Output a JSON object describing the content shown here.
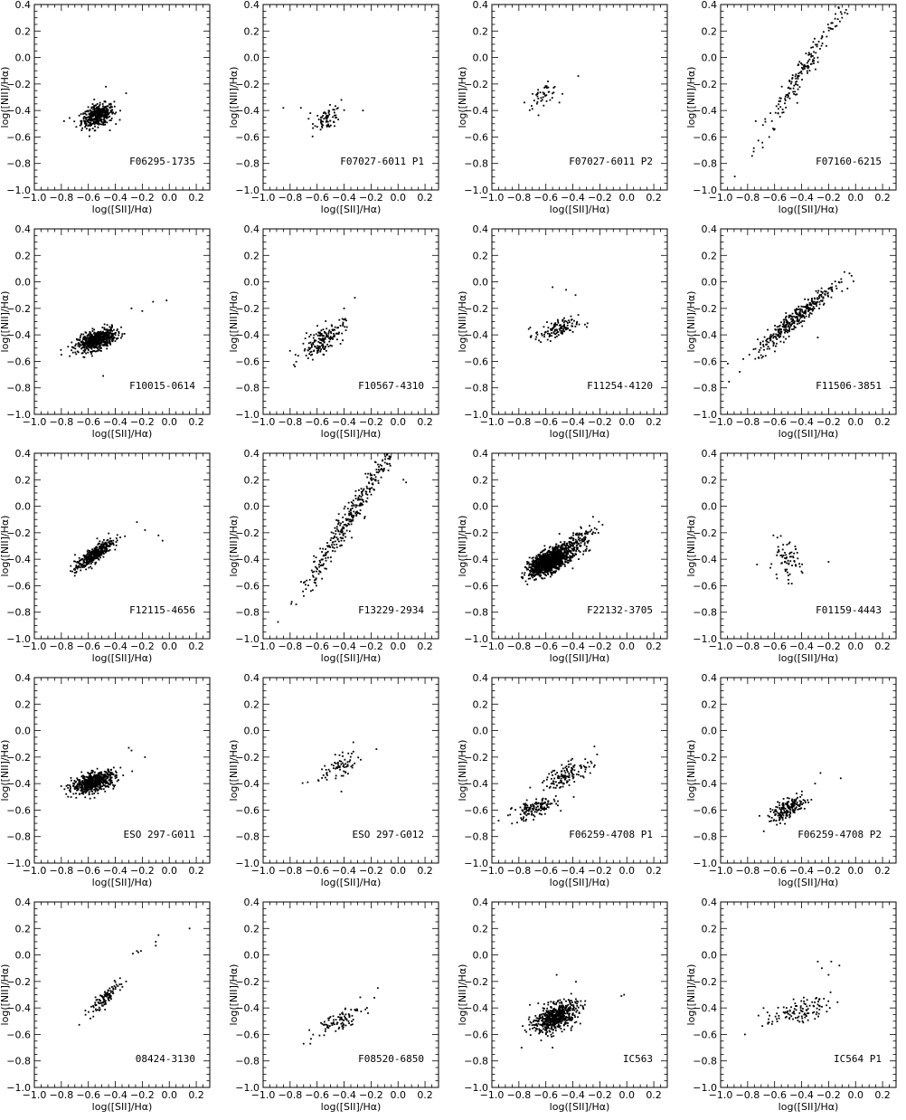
{
  "figure": {
    "xlabel": "log([SII]/Hα)",
    "ylabel": "log([NII]/Hα)",
    "xlim": [
      -1.0,
      0.3
    ],
    "ylim": [
      -1.0,
      0.4
    ],
    "x_ticks": [
      "−1.0",
      "−0.8",
      "−0.6",
      "−0.4",
      "−0.2",
      "0.0",
      "0.2"
    ],
    "y_ticks": [
      "−1.0",
      "−0.8",
      "−0.6",
      "−0.4",
      "−0.2",
      "0.0",
      "0.2",
      "0.4"
    ],
    "grid": "off",
    "layout": "5 rows × 4 columns"
  },
  "chart_data": [
    {
      "type": "scatter",
      "name": "F06295-1735",
      "cloud": [
        {
          "cx": -0.53,
          "cy": -0.44,
          "sx": 0.06,
          "sy": 0.04,
          "slope": 0.3,
          "n": 420
        }
      ],
      "points": [
        [
          -0.78,
          -0.48
        ],
        [
          -0.47,
          -0.22
        ],
        [
          -0.32,
          -0.27
        ],
        [
          -0.44,
          -0.55
        ]
      ]
    },
    {
      "type": "scatter",
      "name": "F07027-6011 P1",
      "cloud": [
        {
          "cx": -0.52,
          "cy": -0.46,
          "sx": 0.05,
          "sy": 0.04,
          "slope": 0.3,
          "n": 70
        }
      ],
      "points": [
        [
          -0.85,
          -0.38
        ],
        [
          -0.72,
          -0.38
        ],
        [
          -0.65,
          -0.42
        ],
        [
          -0.42,
          -0.32
        ],
        [
          -0.26,
          -0.4
        ]
      ]
    },
    {
      "type": "scatter",
      "name": "F07027-6011 P2",
      "cloud": [
        {
          "cx": -0.62,
          "cy": -0.28,
          "sx": 0.06,
          "sy": 0.035,
          "slope": 0.45,
          "n": 45
        }
      ],
      "points": [
        [
          -0.36,
          -0.14
        ],
        [
          -0.5,
          -0.34
        ]
      ]
    },
    {
      "type": "scatter",
      "name": "F07160-6215",
      "cloud": [
        {
          "cx": -0.4,
          "cy": -0.12,
          "sx": 0.17,
          "sy": 0.06,
          "slope": 1.6,
          "n": 170
        }
      ],
      "points": [
        [
          -0.06,
          0.33
        ],
        [
          -0.1,
          0.3
        ],
        [
          -0.07,
          0.36
        ],
        [
          -0.74,
          -0.48
        ],
        [
          -0.62,
          -0.48
        ]
      ]
    },
    {
      "type": "scatter",
      "name": "F10015-0614",
      "cloud": [
        {
          "cx": -0.54,
          "cy": -0.44,
          "sx": 0.07,
          "sy": 0.035,
          "slope": 0.3,
          "n": 620
        }
      ],
      "points": [
        [
          -0.02,
          -0.14
        ],
        [
          -0.12,
          -0.15
        ],
        [
          -0.2,
          -0.22
        ],
        [
          -0.28,
          -0.2
        ],
        [
          -0.49,
          -0.71
        ],
        [
          -0.8,
          -0.55
        ]
      ]
    },
    {
      "type": "scatter",
      "name": "F10567-4310",
      "cloud": [
        {
          "cx": -0.56,
          "cy": -0.44,
          "sx": 0.08,
          "sy": 0.05,
          "slope": 0.6,
          "n": 170
        }
      ],
      "points": [
        [
          -0.32,
          -0.12
        ],
        [
          -0.4,
          -0.2
        ],
        [
          -0.76,
          -0.55
        ]
      ]
    },
    {
      "type": "scatter",
      "name": "F11254-4120",
      "cloud": [
        {
          "cx": -0.52,
          "cy": -0.36,
          "sx": 0.08,
          "sy": 0.035,
          "slope": 0.25,
          "n": 130
        }
      ],
      "points": [
        [
          -0.55,
          -0.04
        ],
        [
          -0.45,
          -0.06
        ],
        [
          -0.38,
          -0.1
        ]
      ]
    },
    {
      "type": "scatter",
      "name": "F11506-3851",
      "cloud": [
        {
          "cx": -0.44,
          "cy": -0.27,
          "sx": 0.15,
          "sy": 0.04,
          "slope": 0.85,
          "n": 360
        }
      ],
      "points": [
        [
          -0.06,
          -0.05
        ],
        [
          -0.1,
          -0.07
        ],
        [
          -0.14,
          -0.05
        ],
        [
          -0.28,
          -0.42
        ]
      ]
    },
    {
      "type": "scatter",
      "name": "F12115-4656",
      "cloud": [
        {
          "cx": -0.56,
          "cy": -0.37,
          "sx": 0.07,
          "sy": 0.03,
          "slope": 0.75,
          "n": 380
        }
      ],
      "points": [
        [
          -0.24,
          -0.12
        ],
        [
          -0.18,
          -0.18
        ],
        [
          -0.08,
          -0.22
        ],
        [
          -0.05,
          -0.26
        ]
      ]
    },
    {
      "type": "scatter",
      "name": "F13229-2934",
      "cloud": [
        {
          "cx": -0.36,
          "cy": -0.08,
          "sx": 0.18,
          "sy": 0.06,
          "slope": 1.6,
          "n": 330
        }
      ],
      "points": [
        [
          0.04,
          0.2
        ],
        [
          0.06,
          0.18
        ],
        [
          -0.08,
          0.32
        ]
      ]
    },
    {
      "type": "scatter",
      "name": "F22132-3705",
      "cloud": [
        {
          "cx": -0.58,
          "cy": -0.42,
          "sx": 0.07,
          "sy": 0.04,
          "slope": 0.4,
          "n": 1200
        },
        {
          "cx": -0.4,
          "cy": -0.3,
          "sx": 0.08,
          "sy": 0.05,
          "slope": 0.6,
          "n": 200
        }
      ],
      "points": [
        [
          -0.25,
          -0.08
        ],
        [
          -0.18,
          -0.14
        ],
        [
          -0.7,
          -0.52
        ]
      ]
    },
    {
      "type": "scatter",
      "name": "F01159-4443",
      "cloud": [
        {
          "cx": -0.52,
          "cy": -0.42,
          "sx": 0.06,
          "sy": 0.07,
          "slope": 0.0,
          "n": 70
        }
      ],
      "points": [
        [
          -0.2,
          -0.42
        ],
        [
          -0.73,
          -0.44
        ]
      ]
    },
    {
      "type": "scatter",
      "name": "ESO 297-G011",
      "cloud": [
        {
          "cx": -0.56,
          "cy": -0.39,
          "sx": 0.08,
          "sy": 0.035,
          "slope": 0.25,
          "n": 580
        }
      ],
      "points": [
        [
          -0.18,
          -0.2
        ],
        [
          -0.3,
          -0.13
        ],
        [
          -0.28,
          -0.15
        ]
      ]
    },
    {
      "type": "scatter",
      "name": "ESO 297-G012",
      "cloud": [
        {
          "cx": -0.44,
          "cy": -0.28,
          "sx": 0.09,
          "sy": 0.04,
          "slope": 0.55,
          "n": 70
        }
      ],
      "points": [
        [
          -0.16,
          -0.14
        ],
        [
          -0.42,
          -0.46
        ]
      ]
    },
    {
      "type": "scatter",
      "name": "F06259-4708 P1",
      "cloud": [
        {
          "cx": -0.68,
          "cy": -0.59,
          "sx": 0.08,
          "sy": 0.035,
          "slope": 0.3,
          "n": 150
        },
        {
          "cx": -0.44,
          "cy": -0.33,
          "sx": 0.09,
          "sy": 0.04,
          "slope": 0.4,
          "n": 130
        }
      ],
      "points": [
        [
          -0.24,
          -0.12
        ],
        [
          -0.22,
          -0.18
        ],
        [
          -0.95,
          -0.68
        ],
        [
          -0.88,
          -0.64
        ]
      ]
    },
    {
      "type": "scatter",
      "name": "F06259-4708 P2",
      "cloud": [
        {
          "cx": -0.5,
          "cy": -0.59,
          "sx": 0.07,
          "sy": 0.035,
          "slope": 0.45,
          "n": 190
        }
      ],
      "points": [
        [
          -0.26,
          -0.32
        ],
        [
          -0.11,
          -0.36
        ],
        [
          -0.3,
          -0.4
        ],
        [
          -0.68,
          -0.76
        ]
      ]
    },
    {
      "type": "scatter",
      "name": "08424-3130",
      "cloud": [
        {
          "cx": -0.48,
          "cy": -0.33,
          "sx": 0.06,
          "sy": 0.03,
          "slope": 0.9,
          "n": 110
        }
      ],
      "points": [
        [
          0.15,
          0.2
        ],
        [
          -0.08,
          0.15
        ],
        [
          -0.1,
          0.1
        ],
        [
          -0.1,
          0.07
        ],
        [
          -0.21,
          0.03
        ],
        [
          -0.24,
          0.03
        ],
        [
          -0.23,
          0.02
        ],
        [
          -0.27,
          0.01
        ],
        [
          -0.32,
          -0.2
        ]
      ]
    },
    {
      "type": "scatter",
      "name": "F08520-6850",
      "cloud": [
        {
          "cx": -0.44,
          "cy": -0.49,
          "sx": 0.08,
          "sy": 0.04,
          "slope": 0.45,
          "n": 90
        }
      ],
      "points": [
        [
          -0.15,
          -0.25
        ],
        [
          -0.7,
          -0.67
        ],
        [
          -0.65,
          -0.67
        ],
        [
          -0.28,
          -0.32
        ]
      ]
    },
    {
      "type": "scatter",
      "name": "IC563",
      "cloud": [
        {
          "cx": -0.53,
          "cy": -0.47,
          "sx": 0.08,
          "sy": 0.05,
          "slope": 0.35,
          "n": 600
        }
      ],
      "points": [
        [
          -0.02,
          -0.3
        ],
        [
          -0.04,
          -0.31
        ],
        [
          -0.52,
          -0.15
        ],
        [
          -0.78,
          -0.7
        ],
        [
          -0.55,
          -0.7
        ]
      ]
    },
    {
      "type": "scatter",
      "name": "IC564 P1",
      "cloud": [
        {
          "cx": -0.43,
          "cy": -0.43,
          "sx": 0.12,
          "sy": 0.04,
          "slope": 0.25,
          "n": 110
        }
      ],
      "points": [
        [
          -0.18,
          -0.05
        ],
        [
          -0.12,
          -0.08
        ],
        [
          -0.25,
          -0.1
        ],
        [
          -0.2,
          -0.15
        ],
        [
          -0.82,
          -0.6
        ],
        [
          -0.28,
          -0.05
        ]
      ]
    }
  ]
}
